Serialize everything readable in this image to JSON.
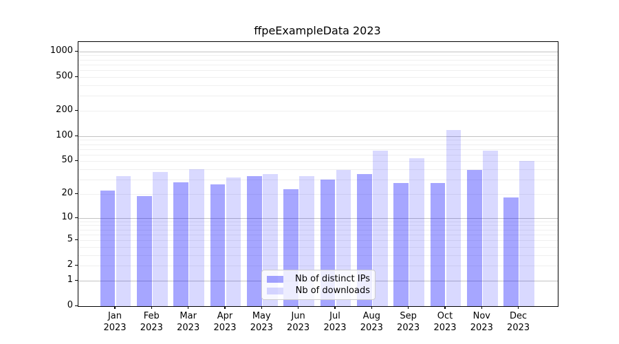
{
  "page": {
    "background": "#ffffff"
  },
  "chart_data": {
    "type": "bar",
    "title": "ffpeExampleData 2023",
    "categories": [
      "Jan",
      "Feb",
      "Mar",
      "Apr",
      "May",
      "Jun",
      "Jul",
      "Aug",
      "Sep",
      "Oct",
      "Nov",
      "Dec"
    ],
    "x_tick_second_line": "2023",
    "series": [
      {
        "name": "Nb of distinct IPs",
        "color": "rgba(0,0,255,0.35)",
        "values": [
          22,
          19,
          28,
          26,
          33,
          23,
          30,
          35,
          27,
          27,
          39,
          18
        ]
      },
      {
        "name": "Nb of downloads",
        "color": "rgba(0,0,255,0.15)",
        "values": [
          33,
          37,
          40,
          32,
          35,
          33,
          39,
          67,
          54,
          117,
          67,
          50
        ]
      }
    ],
    "yscale": "log1p",
    "ylim": [
      0,
      1294
    ],
    "ytick_values": [
      0,
      1,
      2,
      5,
      10,
      20,
      50,
      100,
      200,
      500,
      1000
    ],
    "ytick_labels": [
      "0",
      "1",
      "2",
      "5",
      "10",
      "20",
      "50",
      "100",
      "200",
      "500",
      "1000"
    ],
    "grid": {
      "orientation": "horizontal",
      "major_ticks_at": [
        1,
        10,
        100,
        1000
      ],
      "major_color": "#c2c2c2",
      "minor_color": "#efefef"
    },
    "legend": {
      "position": "inside-bottom-center",
      "items": [
        "Nb of distinct IPs",
        "Nb of downloads"
      ]
    },
    "xlabel": "",
    "ylabel": ""
  }
}
